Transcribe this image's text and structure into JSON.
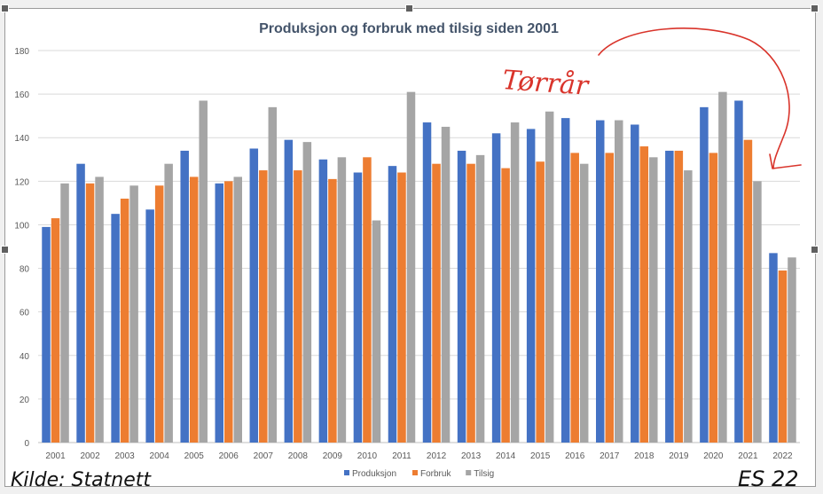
{
  "chart_data": {
    "type": "bar",
    "title": "Produksjon og forbruk med tilsig siden 2001",
    "categories": [
      "2001",
      "2002",
      "2003",
      "2004",
      "2005",
      "2006",
      "2007",
      "2008",
      "2009",
      "2010",
      "2011",
      "2012",
      "2013",
      "2014",
      "2015",
      "2016",
      "2017",
      "2018",
      "2019",
      "2020",
      "2021",
      "2022"
    ],
    "series": [
      {
        "name": "Produksjon",
        "color": "#4472c4",
        "values": [
          99,
          128,
          105,
          107,
          134,
          119,
          135,
          139,
          130,
          124,
          127,
          147,
          134,
          142,
          144,
          149,
          148,
          146,
          134,
          154,
          157,
          87
        ]
      },
      {
        "name": "Forbruk",
        "color": "#ed7d31",
        "values": [
          103,
          119,
          112,
          118,
          122,
          120,
          125,
          125,
          121,
          131,
          124,
          128,
          128,
          126,
          129,
          133,
          133,
          136,
          134,
          133,
          139,
          79
        ]
      },
      {
        "name": "Tilsig",
        "color": "#a5a5a5",
        "values": [
          119,
          122,
          118,
          128,
          157,
          122,
          154,
          138,
          131,
          102,
          161,
          145,
          132,
          147,
          152,
          128,
          148,
          131,
          125,
          161,
          120,
          85
        ]
      }
    ],
    "ylim": [
      0,
      180
    ],
    "yticks": [
      0,
      20,
      40,
      60,
      80,
      100,
      120,
      140,
      160,
      180
    ],
    "grid": true,
    "legend": "bottom-center"
  },
  "annotations": {
    "arrow_label": "Tørrår",
    "source_note": "Kilde: Statnett",
    "initials": "ES 22",
    "arrow_color": "#d9342b"
  }
}
